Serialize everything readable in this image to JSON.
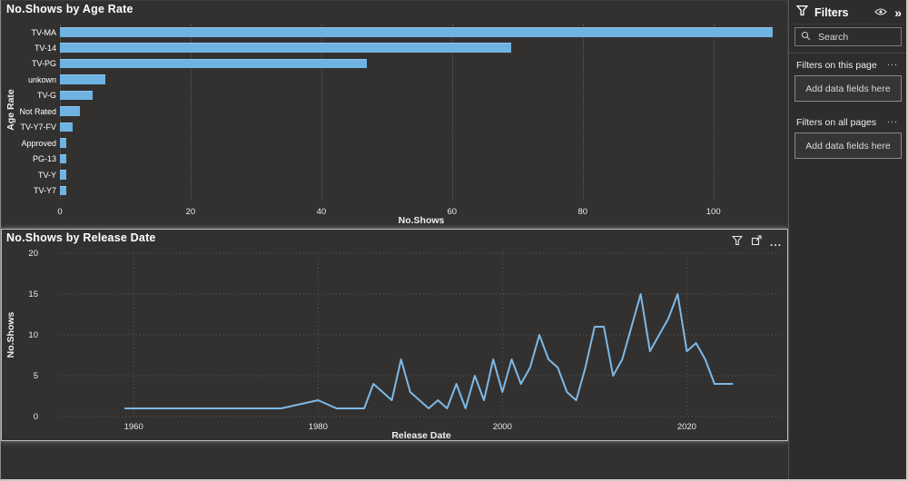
{
  "filters_pane": {
    "title": "Filters",
    "filter_icon": "funnel-icon",
    "header_icons": [
      {
        "name": "eye-icon"
      },
      {
        "name": "collapse-pane-icon",
        "glyph": "»"
      }
    ],
    "search": {
      "placeholder": "Search",
      "icon": "magnifier-icon"
    },
    "sections": [
      {
        "label": "Filters on this page",
        "menu_label": "...",
        "dropzone": "Add data fields here"
      },
      {
        "label": "Filters on all pages",
        "menu_label": "...",
        "dropzone": "Add data fields here"
      }
    ]
  },
  "line_visual_toolbar": {
    "icons": [
      {
        "name": "filter-icon"
      },
      {
        "name": "focus-mode-icon"
      },
      {
        "name": "more-options-icon",
        "glyph": "..."
      }
    ]
  },
  "chart_data": [
    {
      "type": "bar",
      "orientation": "horizontal",
      "title": "No.Shows by Age Rate",
      "xlabel": "No.Shows",
      "ylabel": "Age Rate",
      "categories": [
        "TV-MA",
        "TV-14",
        "TV-PG",
        "unkown",
        "TV-G",
        "Not Rated",
        "TV-Y7-FV",
        "Approved",
        "PG-13",
        "TV-Y",
        "TV-Y7"
      ],
      "values": [
        109,
        69,
        47,
        7,
        5,
        3,
        2,
        1,
        1,
        1,
        1
      ],
      "xticks": [
        0,
        20,
        40,
        60,
        80,
        100
      ],
      "xlim": [
        0,
        110.6
      ],
      "grid": "vertical-dotted",
      "bar_color": "#6fb3e3"
    },
    {
      "type": "line",
      "title": "No.Shows by Release Date",
      "xlabel": "Release Date",
      "ylabel": "No.Shows",
      "x": [
        1959,
        1976,
        1980,
        1982,
        1985,
        1986,
        1987,
        1988,
        1989,
        1990,
        1991,
        1992,
        1993,
        1994,
        1995,
        1996,
        1997,
        1998,
        1999,
        2000,
        2001,
        2002,
        2003,
        2004,
        2005,
        2006,
        2007,
        2008,
        2009,
        2010,
        2011,
        2012,
        2013,
        2014,
        2015,
        2016,
        2017,
        2018,
        2019,
        2020,
        2021,
        2022,
        2023,
        2024,
        2025
      ],
      "y": [
        1,
        1,
        2,
        1,
        1,
        4,
        3,
        2,
        7,
        3,
        2,
        1,
        2,
        1,
        4,
        1,
        5,
        2,
        7,
        3,
        7,
        4,
        6,
        10,
        7,
        6,
        3,
        2,
        6,
        11,
        11,
        5,
        7,
        11,
        15,
        8,
        10,
        12,
        15,
        8,
        9,
        7,
        4,
        4,
        4
      ],
      "xticks": [
        1960,
        1980,
        2000,
        2020
      ],
      "yticks": [
        0,
        5,
        10,
        15,
        20
      ],
      "xlim": [
        1952,
        2030.4
      ],
      "ylim": [
        0,
        20
      ],
      "grid": "dotted",
      "line_color": "#7cb9e8"
    }
  ]
}
